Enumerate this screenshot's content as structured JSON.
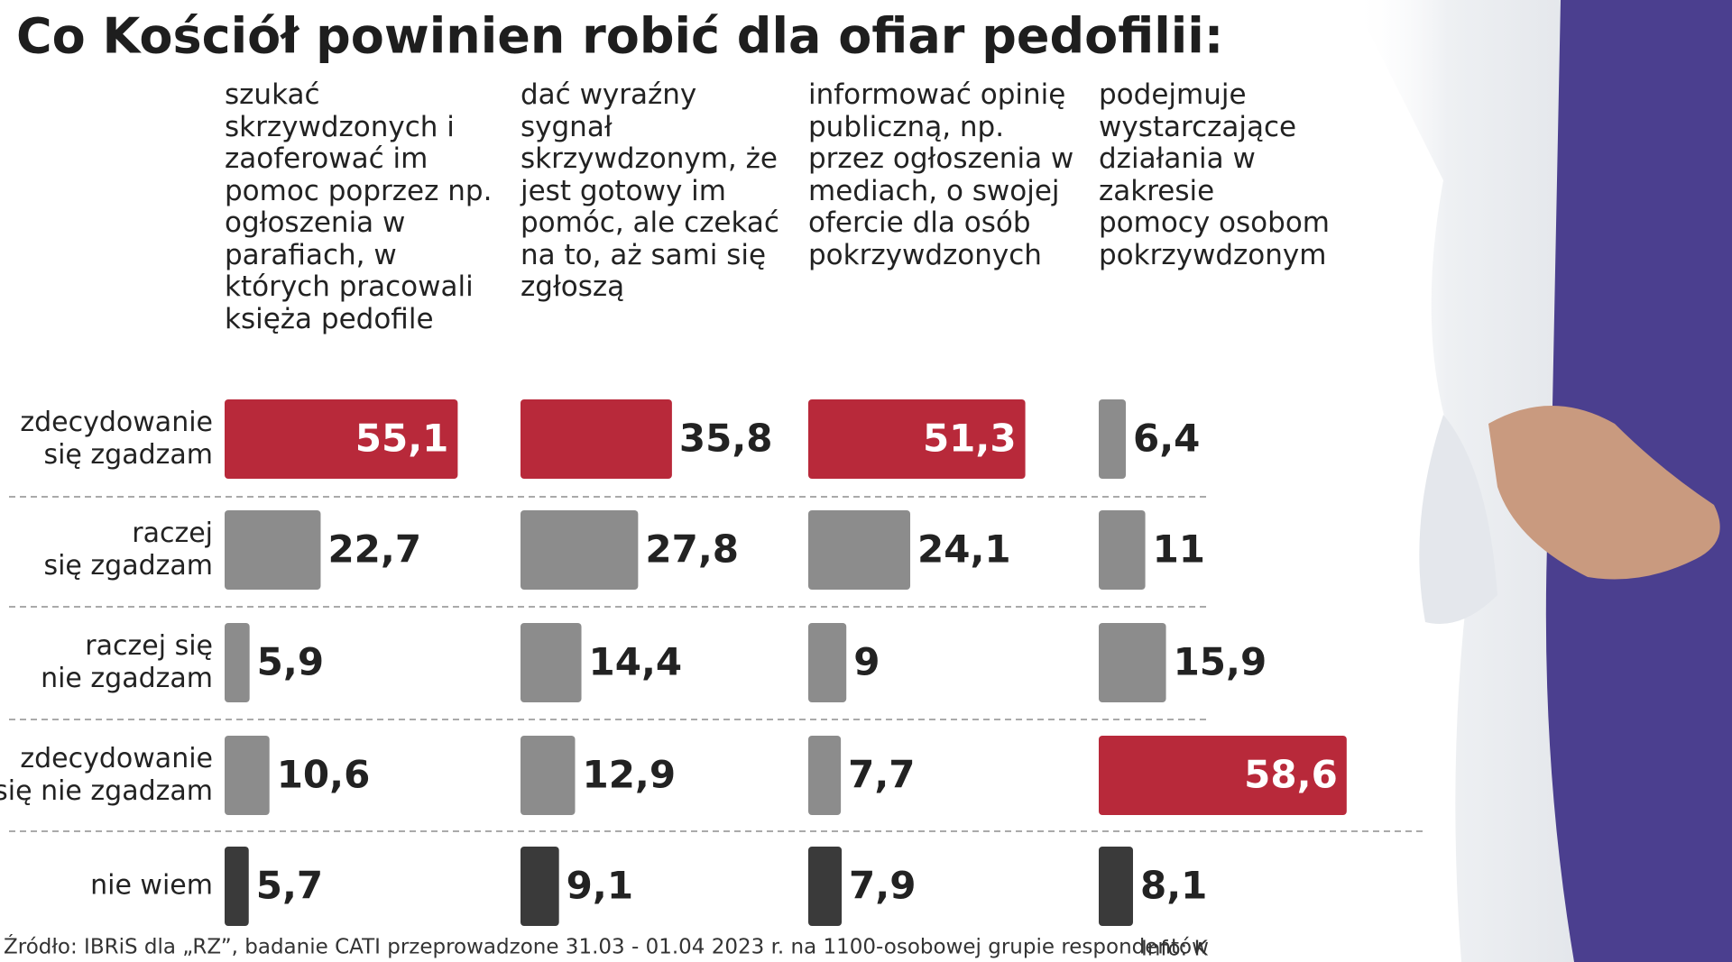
{
  "chart_data": {
    "type": "bar",
    "title": "Co Kościół powinien robić dla ofiar pedofilii:",
    "categories": [
      "zdecydowanie się zgadzam",
      "raczej się zgadzam",
      "raczej się nie zgadzam",
      "zdecydowanie się nie zgadzam",
      "nie wiem"
    ],
    "series": [
      {
        "name": "szukać skrzywdzonych i zaoferować im pomoc poprzez np. ogłoszenia w parafiach, w których pracowali księża pedofile",
        "values": [
          55.1,
          22.7,
          5.9,
          10.6,
          5.7
        ],
        "value_labels": [
          "55,1",
          "22,7",
          "5,9",
          "10,6",
          "5,7"
        ],
        "colors": [
          "#b8293a",
          "#8c8c8c",
          "#8c8c8c",
          "#8c8c8c",
          "#3a3a3a"
        ]
      },
      {
        "name": "dać wyraźny sygnał skrzywdzonym, że jest gotowy im pomóc, ale czekać na to, aż sami się zgłoszą",
        "values": [
          35.8,
          27.8,
          14.4,
          12.9,
          9.1
        ],
        "value_labels": [
          "35,8",
          "27,8",
          "14,4",
          "12,9",
          "9,1"
        ],
        "colors": [
          "#b8293a",
          "#8c8c8c",
          "#8c8c8c",
          "#8c8c8c",
          "#3a3a3a"
        ]
      },
      {
        "name": "informować opinię publiczną, np. przez ogłoszenia w mediach, o swojej ofercie dla osób pokrzywdzonych",
        "values": [
          51.3,
          24.1,
          9,
          7.7,
          7.9
        ],
        "value_labels": [
          "51,3",
          "24,1",
          "9",
          "7,7",
          "7,9"
        ],
        "colors": [
          "#b8293a",
          "#8c8c8c",
          "#8c8c8c",
          "#8c8c8c",
          "#3a3a3a"
        ]
      },
      {
        "name": "podejmuje wystarczające działania w zakresie pomocy osobom pokrzywdzonym",
        "values": [
          6.4,
          11,
          15.9,
          58.6,
          8.1
        ],
        "value_labels": [
          "6,4",
          "11",
          "15,9",
          "58,6",
          "8,1"
        ],
        "colors": [
          "#8c8c8c",
          "#8c8c8c",
          "#8c8c8c",
          "#b8293a",
          "#3a3a3a"
        ]
      }
    ],
    "source": "Źródło: IBRiS dla „RZ”, badanie CATI przeprowadzone 31.03 - 01.04 2023 r. na 1100-osobowej grupie respondentów",
    "credit": "Info: K"
  }
}
